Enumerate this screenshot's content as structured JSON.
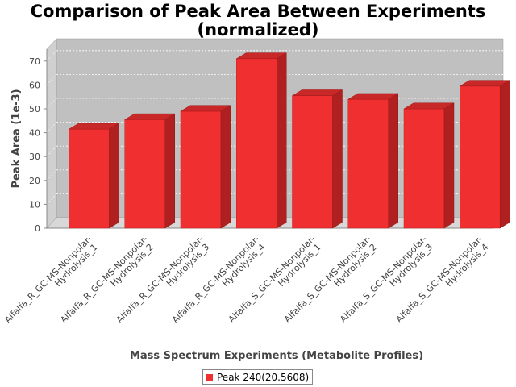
{
  "chart_data": {
    "type": "bar",
    "title": "Comparison of Peak Area Between Experiments",
    "subtitle": "(normalized)",
    "xlabel": "Mass Spectrum Experiments (Metabolite Profiles)",
    "ylabel": "Peak Area (1e-3)",
    "ylim": [
      0,
      75
    ],
    "yticks": [
      "0",
      "10",
      "20",
      "30",
      "40",
      "50",
      "60",
      "70"
    ],
    "grid": true,
    "legend_position": "bottom",
    "categories": [
      [
        "Alfalfa_R_GC-MS-Nonpolar-",
        "Hydrolysis_1"
      ],
      [
        "Alfalfa_R_GC-MS-Nonpolar-",
        "Hydrolysis_2"
      ],
      [
        "Alfalfa_R_GC-MS-Nonpolar-",
        "Hydrolysis_3"
      ],
      [
        "Alfalfa_R_GC-MS-Nonpolar-",
        "Hydrolysis_4"
      ],
      [
        "Alfalfa_S_GC-MS-Nonpolar-",
        "Hydrolysis_1"
      ],
      [
        "Alfalfa_S_GC-MS-Nonpolar-",
        "Hydrolysis_2"
      ],
      [
        "Alfalfa_S_GC-MS-Nonpolar-",
        "Hydrolysis_3"
      ],
      [
        "Alfalfa_S_GC-MS-Nonpolar-",
        "Hydrolysis_4"
      ]
    ],
    "series": [
      {
        "name": "Peak 240(20.5608)",
        "color": "#f03030",
        "values": [
          41.5,
          45.5,
          49,
          71,
          55.5,
          54,
          50,
          59.5
        ]
      }
    ]
  }
}
